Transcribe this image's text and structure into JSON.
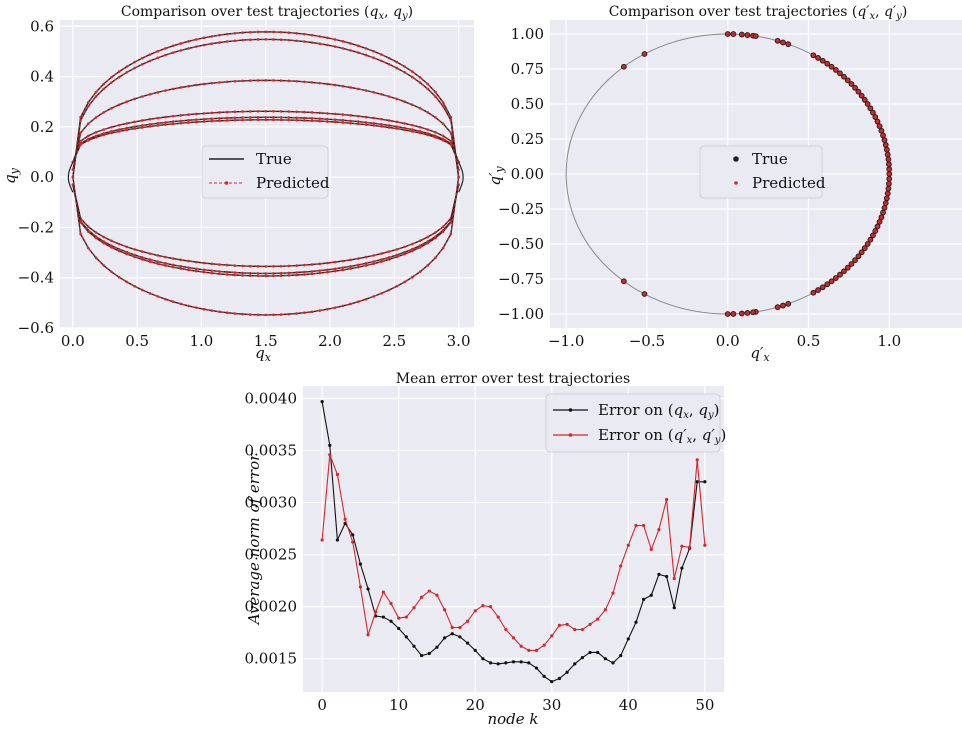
{
  "figure": {
    "background": "#ffffff",
    "axes_bg": "#eaeaf2",
    "grid": "#ffffff",
    "color_true": "#222222",
    "color_pred": "#d62728",
    "color_circle": "#888888"
  },
  "chart_data": [
    {
      "type": "line",
      "title": "Comparison over test trajectories (q_x, q_y)",
      "xlabel": "q_x",
      "ylabel": "q_y",
      "xlim": [
        -0.1,
        3.12
      ],
      "ylim": [
        -0.6,
        0.625
      ],
      "xticks": [
        "0.0",
        "0.5",
        "1.0",
        "1.5",
        "2.0",
        "2.5",
        "3.0"
      ],
      "xtick_values": [
        0,
        0.5,
        1.0,
        1.5,
        2.0,
        2.5,
        3.0
      ],
      "yticks": [
        "−0.6",
        "−0.4",
        "−0.2",
        "0.0",
        "0.2",
        "0.4",
        "0.6"
      ],
      "ytick_values": [
        -0.6,
        -0.4,
        -0.2,
        0,
        0.2,
        0.4,
        0.6
      ],
      "grid": true,
      "legend": {
        "location": "center",
        "entries": [
          "True",
          "Predicted"
        ]
      },
      "trajectories": [
        {
          "x0": 0,
          "x1": 3,
          "y_mid": 0.578,
          "ends": [
            0.0,
            0.0
          ]
        },
        {
          "x0": 0,
          "x1": 3,
          "y_mid": 0.548,
          "ends": [
            0.0,
            0.0
          ]
        },
        {
          "x0": 0,
          "x1": 3,
          "y_mid": 0.385,
          "ends": [
            0.03,
            0.03
          ]
        },
        {
          "x0": 0,
          "x1": 3,
          "y_mid": 0.262,
          "ends": [
            0.06,
            0.06
          ]
        },
        {
          "x0": 0,
          "x1": 3,
          "y_mid": 0.238,
          "ends": [
            0.06,
            0.06
          ]
        },
        {
          "x0": 0,
          "x1": 3,
          "y_mid": 0.228,
          "ends": [
            0.06,
            0.06
          ]
        },
        {
          "x0": 0,
          "x1": 3,
          "y_mid": -0.355,
          "ends": [
            -0.03,
            -0.03
          ]
        },
        {
          "x0": 0,
          "x1": 3,
          "y_mid": -0.383,
          "ends": [
            -0.03,
            -0.03
          ]
        },
        {
          "x0": 0,
          "x1": 3,
          "y_mid": -0.393,
          "ends": [
            -0.03,
            -0.03
          ]
        },
        {
          "x0": 0,
          "x1": 3,
          "y_mid": -0.548,
          "ends": [
            0.0,
            0.0
          ]
        }
      ]
    },
    {
      "type": "scatter",
      "title": "Comparison over test trajectories (q'_x, q'_y)",
      "xlabel": "q'_x",
      "ylabel": "q'_y",
      "xlim": [
        -1.1,
        1.45
      ],
      "ylim": [
        -1.1,
        1.1
      ],
      "xticks": [
        "−1.0",
        "−0.5",
        "0.0",
        "0.5",
        "1.0"
      ],
      "xtick_values": [
        -1.0,
        -0.5,
        0,
        0.5,
        1.0
      ],
      "yticks": [
        "−1.00",
        "−0.75",
        "−0.50",
        "−0.25",
        "0.00",
        "0.25",
        "0.50",
        "0.75",
        "1.00"
      ],
      "ytick_values": [
        -1.0,
        -0.75,
        -0.5,
        -0.25,
        0,
        0.25,
        0.5,
        0.75,
        1.0
      ],
      "grid": true,
      "legend": {
        "location": "center",
        "entries": [
          "True",
          "Predicted"
        ]
      },
      "angles_deg": [
        90,
        88,
        85,
        83,
        81,
        80,
        72,
        70,
        68,
        58,
        56,
        54,
        52,
        50,
        48,
        46,
        44,
        42,
        40,
        38,
        36,
        34,
        32,
        30,
        28,
        26,
        24,
        22,
        20,
        18,
        16,
        14,
        12,
        10,
        8,
        6,
        4,
        2,
        0,
        -2,
        -4,
        -6,
        -8,
        -10,
        -12,
        -14,
        -16,
        -18,
        -20,
        -22,
        -24,
        -26,
        -28,
        -30,
        -32,
        -34,
        -36,
        -38,
        -40,
        -42,
        -44,
        -46,
        -48,
        -50,
        -52,
        -54,
        -56,
        -58,
        -68,
        -70,
        -72,
        -80,
        -81,
        -83,
        -85,
        -88,
        -90,
        121,
        130,
        230,
        239
      ]
    },
    {
      "type": "line",
      "title": "Mean error over test trajectories",
      "xlabel": "node k",
      "ylabel": "Average norm of error",
      "xlim": [
        -2.5,
        52.5
      ],
      "ylim": [
        0.00118,
        0.00412
      ],
      "xticks": [
        "0",
        "10",
        "20",
        "30",
        "40",
        "50"
      ],
      "xtick_values": [
        0,
        10,
        20,
        30,
        40,
        50
      ],
      "yticks": [
        "0.0015",
        "0.0020",
        "0.0025",
        "0.0030",
        "0.0035",
        "0.0040"
      ],
      "ytick_values": [
        0.0015,
        0.002,
        0.0025,
        0.003,
        0.0035,
        0.004
      ],
      "grid": true,
      "legend": {
        "location": "upper right",
        "entries": [
          "Error on (q_x, q_y)",
          "Error on (q'_x, q'_y)"
        ]
      },
      "x": [
        0,
        1,
        2,
        3,
        4,
        5,
        6,
        7,
        8,
        9,
        10,
        11,
        12,
        13,
        14,
        15,
        16,
        17,
        18,
        19,
        20,
        21,
        22,
        23,
        24,
        25,
        26,
        27,
        28,
        29,
        30,
        31,
        32,
        33,
        34,
        35,
        36,
        37,
        38,
        39,
        40,
        41,
        42,
        43,
        44,
        45,
        46,
        47,
        48,
        49,
        50
      ],
      "series": [
        {
          "name": "Error on (q_x, q_y)",
          "color": "#111111",
          "values": [
            0.00397,
            0.00355,
            0.00264,
            0.0028,
            0.00269,
            0.00241,
            0.00217,
            0.00191,
            0.0019,
            0.00186,
            0.00179,
            0.00171,
            0.00162,
            0.00153,
            0.00155,
            0.00161,
            0.0017,
            0.00174,
            0.00171,
            0.00165,
            0.00158,
            0.0015,
            0.00146,
            0.00145,
            0.00146,
            0.00147,
            0.00147,
            0.00146,
            0.00141,
            0.00133,
            0.00128,
            0.00131,
            0.00137,
            0.00145,
            0.00151,
            0.00156,
            0.00156,
            0.0015,
            0.00146,
            0.00153,
            0.00169,
            0.00185,
            0.00207,
            0.00211,
            0.00231,
            0.00229,
            0.00199,
            0.00237,
            0.00256,
            0.0032,
            0.0032
          ]
        },
        {
          "name": "Error on (q'_x, q'_y)",
          "color": "#d62728",
          "values": [
            0.00264,
            0.00346,
            0.00327,
            0.00284,
            0.00262,
            0.00219,
            0.00173,
            0.00195,
            0.00214,
            0.00203,
            0.00189,
            0.0019,
            0.00199,
            0.00209,
            0.00215,
            0.00211,
            0.00197,
            0.0018,
            0.0018,
            0.00186,
            0.00196,
            0.00201,
            0.002,
            0.0019,
            0.00178,
            0.0017,
            0.00162,
            0.00158,
            0.00158,
            0.00163,
            0.00172,
            0.00182,
            0.00183,
            0.00178,
            0.00178,
            0.00183,
            0.00188,
            0.00197,
            0.00213,
            0.00239,
            0.00259,
            0.00278,
            0.00278,
            0.00255,
            0.00274,
            0.00303,
            0.00227,
            0.00258,
            0.00257,
            0.00341,
            0.00259
          ]
        }
      ]
    }
  ]
}
